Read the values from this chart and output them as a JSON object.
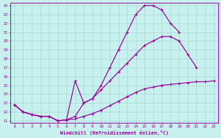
{
  "xlabel": "Windchill (Refroidissement éolien,°C)",
  "xlim": [
    -0.5,
    23.5
  ],
  "ylim": [
    10.8,
    24.3
  ],
  "xticks": [
    0,
    1,
    2,
    3,
    4,
    5,
    6,
    7,
    8,
    9,
    10,
    11,
    12,
    13,
    14,
    15,
    16,
    17,
    18,
    19,
    20,
    21,
    22,
    23
  ],
  "yticks": [
    11,
    12,
    13,
    14,
    15,
    16,
    17,
    18,
    19,
    20,
    21,
    22,
    23,
    24
  ],
  "bg_color": "#c8f0ee",
  "line_color": "#990099",
  "grid_color": "#a0d8d4",
  "line1_x": [
    0,
    1,
    2,
    3,
    4,
    5,
    6,
    7,
    8,
    9,
    10,
    11,
    12,
    13,
    14,
    15,
    16,
    17,
    18,
    19,
    20,
    21,
    22,
    23
  ],
  "line1_y": [
    12.8,
    12.0,
    11.7,
    11.5,
    11.5,
    11.0,
    11.1,
    11.2,
    11.5,
    11.8,
    12.2,
    12.7,
    13.2,
    13.7,
    14.2,
    14.6,
    14.8,
    15.0,
    15.1,
    15.2,
    15.3,
    15.4,
    15.4,
    15.5
  ],
  "line2_x": [
    0,
    1,
    2,
    3,
    4,
    5,
    6,
    7,
    8,
    9,
    10,
    11,
    12,
    13,
    14,
    15,
    16,
    17,
    18,
    19,
    20,
    21,
    22,
    23
  ],
  "line2_y": [
    12.8,
    12.0,
    11.7,
    11.5,
    11.5,
    11.0,
    11.1,
    11.5,
    13.0,
    13.5,
    14.5,
    15.5,
    16.5,
    17.5,
    18.5,
    19.5,
    20.0,
    20.5,
    20.5,
    20.0,
    18.5,
    17.0,
    null,
    null
  ],
  "line3_x": [
    0,
    1,
    2,
    3,
    4,
    5,
    6,
    7,
    8,
    9,
    10,
    11,
    12,
    13,
    14,
    15,
    16,
    17,
    18,
    19,
    20,
    21,
    22,
    23
  ],
  "line3_y": [
    12.8,
    12.0,
    11.7,
    11.5,
    11.5,
    11.0,
    11.1,
    15.5,
    13.0,
    13.5,
    15.0,
    17.0,
    19.0,
    21.0,
    23.0,
    24.0,
    24.0,
    23.5,
    22.0,
    21.0,
    null,
    null,
    null,
    null
  ]
}
